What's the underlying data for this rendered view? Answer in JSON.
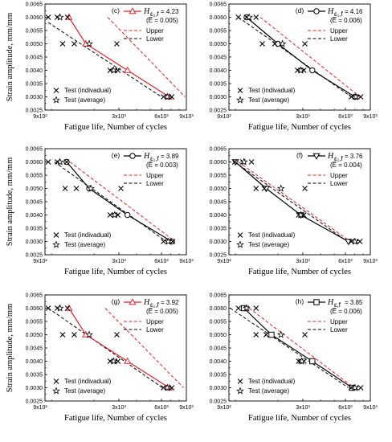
{
  "chart_data": [
    {
      "type": "scatter",
      "panel_label": "(c)",
      "xlabel": "Fatigue life, Number of cycles",
      "ylabel": "Strain amplitude, mm/mm",
      "x_scale": "log",
      "xlim": [
        900,
        9000
      ],
      "ylim": [
        0.0025,
        0.0065
      ],
      "x_ticks": [
        "9x10²",
        "3x10³",
        "6x10³",
        "9x10³"
      ],
      "y_ticks": [
        "0.0025",
        "0.0030",
        "0.0035",
        "0.0040",
        "0.0045",
        "0.0050",
        "0.0055",
        "0.0060",
        "0.0065"
      ],
      "legend_series_symbol": "H",
      "legend_series_sub": "ε₁,f",
      "legend_series_value": "= 4.23",
      "legend_series_note": "(E̅ = 0.005)",
      "legend_upper": "Upper",
      "legend_lower": "Lower",
      "legend_individual": "Test (indivadual)",
      "legend_average": "Test (average)",
      "prediction_color": "#e8202a",
      "marker": "triangle",
      "prediction": [
        [
          1330,
          0.006
        ],
        [
          1750,
          0.005
        ],
        [
          3450,
          0.004
        ],
        [
          6800,
          0.003
        ]
      ],
      "upper": [
        [
          2500,
          0.006
        ],
        [
          8800,
          0.003
        ]
      ],
      "lower": [
        [
          950,
          0.0058
        ],
        [
          6000,
          0.003
        ]
      ],
      "test_individual": [
        [
          950,
          0.006
        ],
        [
          1100,
          0.006
        ],
        [
          1300,
          0.006
        ],
        [
          1200,
          0.005
        ],
        [
          1450,
          0.005
        ],
        [
          2900,
          0.005
        ],
        [
          2600,
          0.004
        ],
        [
          2800,
          0.004
        ],
        [
          2950,
          0.004
        ],
        [
          6200,
          0.003
        ],
        [
          6700,
          0.003
        ],
        [
          7100,
          0.003
        ]
      ],
      "test_average": [
        [
          1150,
          0.006
        ],
        [
          1850,
          0.005
        ],
        [
          2750,
          0.004
        ],
        [
          6600,
          0.003
        ]
      ]
    },
    {
      "type": "scatter",
      "panel_label": "(d)",
      "xlabel": "Fatigue life, Number of cycles",
      "ylabel": "",
      "x_scale": "log",
      "xlim": [
        900,
        9000
      ],
      "ylim": [
        0.0025,
        0.0065
      ],
      "x_ticks": [
        "9x10²",
        "3x10³",
        "6x10³",
        "9x10³"
      ],
      "y_ticks": [
        "0.0025",
        "0.0030",
        "0.0035",
        "0.0040",
        "0.0045",
        "0.0050",
        "0.0055",
        "0.0060",
        "0.0065"
      ],
      "legend_series_symbol": "H",
      "legend_series_sub": "ε₁,f",
      "legend_series_value": "= 4.16",
      "legend_series_note": "(E̅ = 0.006)",
      "legend_upper": "Upper",
      "legend_lower": "Lower",
      "legend_individual": "Test (indivadual)",
      "legend_average": "Test (average)",
      "prediction_color": "#000000",
      "marker": "circle",
      "prediction": [
        [
          1200,
          0.006
        ],
        [
          2000,
          0.005
        ],
        [
          3500,
          0.004
        ],
        [
          7000,
          0.003
        ]
      ],
      "upper": [
        [
          1500,
          0.006
        ],
        [
          7600,
          0.003
        ]
      ],
      "lower": [
        [
          1050,
          0.006
        ],
        [
          6600,
          0.003
        ]
      ],
      "test_individual": [
        [
          1050,
          0.006
        ],
        [
          1200,
          0.006
        ],
        [
          1400,
          0.006
        ],
        [
          1550,
          0.005
        ],
        [
          1900,
          0.005
        ],
        [
          3100,
          0.005
        ],
        [
          2750,
          0.004
        ],
        [
          2900,
          0.004
        ],
        [
          3050,
          0.004
        ],
        [
          6600,
          0.003
        ],
        [
          7100,
          0.003
        ],
        [
          7700,
          0.003
        ]
      ],
      "test_average": [
        [
          1250,
          0.006
        ],
        [
          2150,
          0.005
        ],
        [
          2900,
          0.004
        ],
        [
          7100,
          0.003
        ]
      ]
    },
    {
      "type": "scatter",
      "panel_label": "(e)",
      "xlabel": "Fatigue life, Number of cycles",
      "ylabel": "Strain amplitude, mm/mm",
      "x_scale": "log",
      "xlim": [
        900,
        9000
      ],
      "ylim": [
        0.0025,
        0.0065
      ],
      "x_ticks": [
        "9x10²",
        "3x10³",
        "6x10³",
        "9x10³"
      ],
      "y_ticks": [
        "0.0025",
        "0.0030",
        "0.0035",
        "0.0040",
        "0.0045",
        "0.0050",
        "0.0055",
        "0.0060",
        "0.0065"
      ],
      "legend_series_symbol": "H",
      "legend_series_sub": "ε₁,f",
      "legend_series_value": "= 3.89",
      "legend_series_note": "(E̅ = 0.003)",
      "legend_upper": "Upper",
      "legend_lower": "Lower",
      "legend_individual": "Test (indivadual)",
      "legend_average": "Test (average)",
      "prediction_color": "#000000",
      "marker": "circle",
      "prediction": [
        [
          1280,
          0.006
        ],
        [
          1850,
          0.005
        ],
        [
          3450,
          0.004
        ],
        [
          7100,
          0.003
        ]
      ],
      "upper": [
        [
          1350,
          0.006
        ],
        [
          7500,
          0.003
        ]
      ],
      "lower": [
        [
          1050,
          0.006
        ],
        [
          6500,
          0.003
        ]
      ],
      "test_individual": [
        [
          950,
          0.006
        ],
        [
          1100,
          0.006
        ],
        [
          1280,
          0.006
        ],
        [
          1250,
          0.005
        ],
        [
          1500,
          0.005
        ],
        [
          3100,
          0.005
        ],
        [
          2600,
          0.004
        ],
        [
          2800,
          0.004
        ],
        [
          2950,
          0.004
        ],
        [
          6200,
          0.003
        ],
        [
          6800,
          0.003
        ],
        [
          7200,
          0.003
        ]
      ],
      "test_average": [
        [
          1150,
          0.006
        ],
        [
          1900,
          0.005
        ],
        [
          2800,
          0.004
        ],
        [
          6700,
          0.003
        ]
      ]
    },
    {
      "type": "scatter",
      "panel_label": "(f)",
      "xlabel": "Fatigue life, Number of cycles",
      "ylabel": "",
      "x_scale": "log",
      "xlim": [
        900,
        9000
      ],
      "ylim": [
        0.0025,
        0.0065
      ],
      "x_ticks": [
        "9x10²",
        "3x10³",
        "6x10³",
        "9x10³"
      ],
      "y_ticks": [
        "0.0025",
        "0.0030",
        "0.0035",
        "0.0040",
        "0.0045",
        "0.0050",
        "0.0055",
        "0.0060",
        "0.0065"
      ],
      "legend_series_symbol": "H",
      "legend_series_sub": "ε₁,f",
      "legend_series_value": "= 3.76",
      "legend_series_note": "(E̅ = 0.004)",
      "legend_upper": "Upper",
      "legend_lower": "Lower",
      "legend_individual": "Test (indivadual)",
      "legend_average": "Test (average)",
      "prediction_color": "#000000",
      "marker": "triangle-down",
      "prediction": [
        [
          1000,
          0.006
        ],
        [
          1650,
          0.005
        ],
        [
          2900,
          0.004
        ],
        [
          6300,
          0.003
        ]
      ],
      "upper": [
        [
          1050,
          0.006
        ],
        [
          6500,
          0.003
        ]
      ],
      "lower": [
        [
          990,
          0.006
        ],
        [
          6200,
          0.003
        ]
      ],
      "test_individual": [
        [
          990,
          0.006
        ],
        [
          1130,
          0.006
        ],
        [
          1300,
          0.006
        ],
        [
          1400,
          0.005
        ],
        [
          1600,
          0.005
        ],
        [
          3100,
          0.005
        ],
        [
          2800,
          0.004
        ],
        [
          2900,
          0.004
        ],
        [
          3050,
          0.004
        ],
        [
          6600,
          0.003
        ],
        [
          7100,
          0.003
        ],
        [
          7600,
          0.003
        ]
      ],
      "test_average": [
        [
          1150,
          0.006
        ],
        [
          2100,
          0.005
        ],
        [
          2900,
          0.004
        ],
        [
          7000,
          0.003
        ]
      ]
    },
    {
      "type": "scatter",
      "panel_label": "(g)",
      "xlabel": "Fatigue life, Number of cycles",
      "ylabel": "Strain amplitude, mm/mm",
      "x_scale": "log",
      "xlim": [
        900,
        9000
      ],
      "ylim": [
        0.0025,
        0.0065
      ],
      "x_ticks": [
        "9x10²",
        "3x10³",
        "6x10³",
        "9x10³"
      ],
      "y_ticks": [
        "0.0025",
        "0.0030",
        "0.0035",
        "0.0040",
        "0.0045",
        "0.0050",
        "0.0055",
        "0.0060",
        "0.0065"
      ],
      "legend_series_symbol": "H",
      "legend_series_sub": "ε₁,f",
      "legend_series_value": "= 3.92",
      "legend_series_note": "(E̅ = 0.005)",
      "legend_upper": "Upper",
      "legend_lower": "Lower",
      "legend_individual": "Test (indivadual)",
      "legend_average": "Test (average)",
      "prediction_color": "#e8202a",
      "marker": "triangle",
      "prediction": [
        [
          1330,
          0.006
        ],
        [
          1750,
          0.005
        ],
        [
          3450,
          0.004
        ],
        [
          6800,
          0.003
        ]
      ],
      "upper": [
        [
          2400,
          0.006
        ],
        [
          8600,
          0.003
        ]
      ],
      "lower": [
        [
          950,
          0.006
        ],
        [
          6100,
          0.003
        ]
      ],
      "test_individual": [
        [
          950,
          0.006
        ],
        [
          1100,
          0.006
        ],
        [
          1300,
          0.006
        ],
        [
          1200,
          0.005
        ],
        [
          1450,
          0.005
        ],
        [
          2900,
          0.005
        ],
        [
          2600,
          0.004
        ],
        [
          2800,
          0.004
        ],
        [
          2950,
          0.004
        ],
        [
          6200,
          0.003
        ],
        [
          6700,
          0.003
        ],
        [
          7100,
          0.003
        ]
      ],
      "test_average": [
        [
          1150,
          0.006
        ],
        [
          1850,
          0.005
        ],
        [
          2750,
          0.004
        ],
        [
          6600,
          0.003
        ]
      ]
    },
    {
      "type": "scatter",
      "panel_label": "(h)",
      "xlabel": "Fatigue life, Number of cycles",
      "ylabel": "",
      "x_scale": "log",
      "xlim": [
        900,
        9000
      ],
      "ylim": [
        0.0025,
        0.0065
      ],
      "x_ticks": [
        "9x10²",
        "3x10³",
        "6x10³",
        "9x10³"
      ],
      "y_ticks": [
        "0.0025",
        "0.0030",
        "0.0035",
        "0.0040",
        "0.0045",
        "0.0050",
        "0.0055",
        "0.0060",
        "0.0065"
      ],
      "legend_series_symbol": "H",
      "legend_series_sub": "ε,f",
      "legend_series_value": "= 3.85",
      "legend_series_note": "(E̅ = 0.006)",
      "legend_upper": "Upper",
      "legend_lower": "Lower",
      "legend_individual": "Test (indivadual)",
      "legend_average": "Test (average)",
      "prediction_color": "#000000",
      "marker": "square",
      "prediction": [
        [
          1150,
          0.006
        ],
        [
          1800,
          0.005
        ],
        [
          3500,
          0.004
        ],
        [
          6700,
          0.003
        ]
      ],
      "upper": [
        [
          1250,
          0.006
        ],
        [
          6900,
          0.003
        ]
      ],
      "lower": [
        [
          920,
          0.006
        ],
        [
          6300,
          0.003
        ]
      ],
      "test_individual": [
        [
          1050,
          0.006
        ],
        [
          1200,
          0.006
        ],
        [
          1400,
          0.006
        ],
        [
          1400,
          0.005
        ],
        [
          1650,
          0.005
        ],
        [
          3100,
          0.005
        ],
        [
          2800,
          0.004
        ],
        [
          2900,
          0.004
        ],
        [
          3050,
          0.004
        ],
        [
          6600,
          0.003
        ],
        [
          7100,
          0.003
        ],
        [
          7700,
          0.003
        ]
      ],
      "test_average": [
        [
          1200,
          0.006
        ],
        [
          2100,
          0.005
        ],
        [
          2950,
          0.004
        ],
        [
          7000,
          0.003
        ]
      ]
    }
  ]
}
